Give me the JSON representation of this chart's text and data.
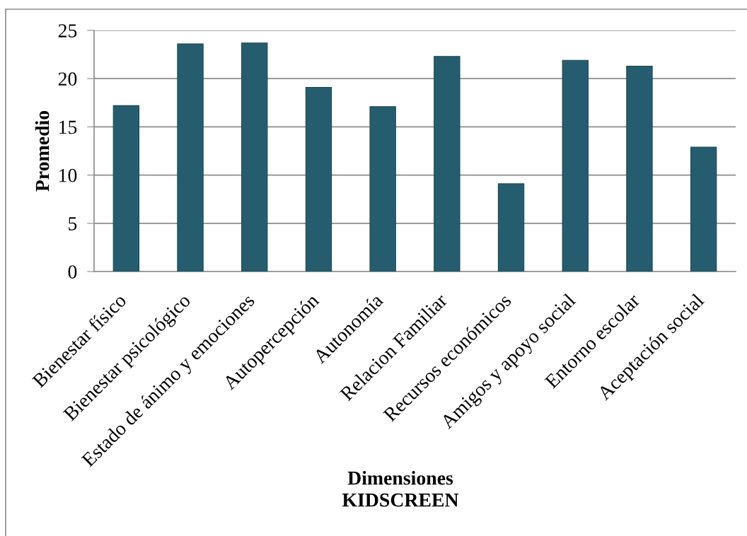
{
  "chart_data": {
    "type": "bar",
    "xlabel": "Dimensiones\nKIDSCREEN",
    "ylabel": "Promedio",
    "categories": [
      "Bienestar físico",
      "Bienestar psicológico",
      "Estado de ánimo y emociones",
      "Autopercepción",
      "Autonomía",
      "Relacion Familiar",
      "Recursos económicos",
      "Amigos y apoyo social",
      "Entorno escolar",
      "Aceptación social"
    ],
    "values": [
      17.2,
      23.6,
      23.7,
      19.1,
      17.1,
      22.3,
      9.1,
      21.9,
      21.3,
      12.9
    ],
    "color": "#255d6e",
    "ylim": [
      0,
      25
    ],
    "yticks": [
      0,
      5,
      10,
      15,
      20,
      25
    ],
    "grid": "y"
  }
}
